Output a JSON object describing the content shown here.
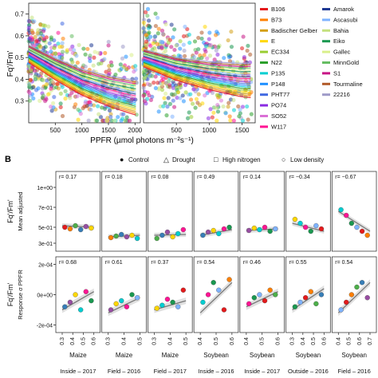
{
  "panel_a": {
    "ylabel": "Fq'/Fm'",
    "xlabel": "PPFR (µmol photons m⁻²s⁻¹)",
    "ytick_labels": [
      "0.3",
      "0.4",
      "0.5",
      "0.6",
      "0.7"
    ],
    "xtick_labels_left": [
      "500",
      "1000",
      "1500",
      "2000"
    ],
    "xtick_labels_right": [
      "500",
      "1000",
      "1500"
    ]
  },
  "legend_a": {
    "col1": [
      {
        "name": "B106",
        "color": "#e41a1c"
      },
      {
        "name": "B73",
        "color": "#ff7f00"
      },
      {
        "name": "Badischer Gelber",
        "color": "#d4a017"
      },
      {
        "name": "E",
        "color": "#ffd700"
      },
      {
        "name": "EC334",
        "color": "#9acd32"
      },
      {
        "name": "N22",
        "color": "#2ca02c"
      },
      {
        "name": "P135",
        "color": "#00ced1"
      },
      {
        "name": "P148",
        "color": "#1e90ff"
      },
      {
        "name": "PHT77",
        "color": "#4169e1"
      },
      {
        "name": "PO74",
        "color": "#8a2be2"
      },
      {
        "name": "SO52",
        "color": "#da70d6"
      },
      {
        "name": "W117",
        "color": "#ff1493"
      }
    ],
    "col2": [
      {
        "name": "Amarok",
        "color": "#1f3a93"
      },
      {
        "name": "Ascasubi",
        "color": "#7fb3ff"
      },
      {
        "name": "Bahia",
        "color": "#c4e17f"
      },
      {
        "name": "Eiko",
        "color": "#1a9850"
      },
      {
        "name": "Gallec",
        "color": "#d9ef8b"
      },
      {
        "name": "MinnGold",
        "color": "#66bd63"
      },
      {
        "name": "S1",
        "color": "#c71585"
      },
      {
        "name": "Tourmaline",
        "color": "#b15928"
      },
      {
        "name": "22216",
        "color": "#9e9ac8"
      }
    ]
  },
  "panel_b": {
    "label": "B",
    "legend": [
      {
        "symbol": "●",
        "label": "Control"
      },
      {
        "symbol": "△",
        "label": "Drought"
      },
      {
        "symbol": "□",
        "label": "High nitrogen"
      },
      {
        "symbol": "○",
        "label": "Low density"
      }
    ],
    "top_ylabel_main": "Fq'/Fm'",
    "top_ylabel_sub": "Mean adjusted",
    "top_yticks": [
      "1e+00",
      "7e-01",
      "5e-01",
      "3e-01"
    ],
    "bottom_ylabel_main": "Fq'/Fm'",
    "bottom_ylabel_sub": "Response σ PPFR",
    "bottom_yticks": [
      "2e-04",
      "0e+00",
      "-2e-04"
    ]
  },
  "chart_data": [
    {
      "type": "scatter",
      "panel": "A",
      "xlabel": "PPFR (µmol photons m⁻²s⁻¹)",
      "ylabel": "Fq'/Fm'",
      "subpanels": [
        {
          "xlim": [
            0,
            2100
          ],
          "ylim": [
            0.2,
            0.75
          ],
          "trend_x": [
            0,
            500,
            1000,
            1500,
            2000
          ],
          "trend_y": [
            0.52,
            0.45,
            0.39,
            0.35,
            0.32
          ]
        },
        {
          "xlim": [
            0,
            1700
          ],
          "ylim": [
            0.2,
            0.75
          ],
          "trend_x": [
            0,
            500,
            1000,
            1500
          ],
          "trend_y": [
            0.5,
            0.45,
            0.42,
            0.4
          ]
        }
      ]
    },
    {
      "type": "scatter",
      "panel": "B",
      "facets": [
        {
          "crop": "Maize",
          "env": "Inside – 2017",
          "r_top": "r= 0.17",
          "r_bottom": "r= 0.68",
          "x_ticks": [
            "0.3",
            "0.4",
            "0.5",
            "0.6"
          ],
          "top_trend": [
            0.52,
            0.5
          ],
          "bottom_trend": [
            -0.1,
            0.02
          ],
          "top_points": [
            0.5,
            0.48,
            0.52,
            0.47,
            0.51,
            0.49
          ],
          "bottom_points": [
            -0.08,
            -0.05,
            0.0,
            -0.1,
            0.02,
            -0.04
          ]
        },
        {
          "crop": "Maize",
          "env": "Field – 2016",
          "r_top": "r= 0.18",
          "r_bottom": "r= 0.61",
          "x_ticks": [
            "0.3",
            "0.4",
            "0.5"
          ],
          "top_trend": [
            0.38,
            0.4
          ],
          "bottom_trend": [
            -0.12,
            -0.02
          ],
          "top_points": [
            0.37,
            0.39,
            0.41,
            0.38,
            0.4,
            0.36
          ],
          "bottom_points": [
            -0.1,
            -0.06,
            -0.04,
            -0.08,
            0.0,
            -0.02
          ]
        },
        {
          "crop": "Maize",
          "env": "Field – 2017",
          "r_top": "r= 0.08",
          "r_bottom": "r= 0.37",
          "x_ticks": [
            "0.3",
            "0.4",
            "0.5"
          ],
          "top_trend": [
            0.4,
            0.41
          ],
          "bottom_trend": [
            -0.1,
            -0.04
          ],
          "top_points": [
            0.36,
            0.4,
            0.44,
            0.38,
            0.42,
            0.47
          ],
          "bottom_points": [
            -0.09,
            -0.07,
            -0.03,
            -0.05,
            -0.08,
            0.03
          ]
        },
        {
          "crop": "Soybean",
          "env": "Inside – 2016",
          "r_top": "r= 0.49",
          "r_bottom": "r= 0.54",
          "x_ticks": [
            "0.4",
            "0.5",
            "0.6"
          ],
          "top_trend": [
            0.4,
            0.47
          ],
          "bottom_trend": [
            -0.12,
            0.08
          ],
          "top_points": [
            0.4,
            0.44,
            0.46,
            0.42,
            0.48,
            0.5
          ],
          "bottom_points": [
            -0.05,
            0.0,
            0.08,
            0.03,
            -0.1,
            0.1
          ]
        },
        {
          "crop": "Soybean",
          "env": "Inside – 2017",
          "r_top": "r= 0.14",
          "r_bottom": "r= 0.46",
          "x_ticks": [
            "0.4",
            "0.5",
            "0.6"
          ],
          "top_trend": [
            0.46,
            0.48
          ],
          "bottom_trend": [
            -0.08,
            0.02
          ],
          "top_points": [
            0.46,
            0.49,
            0.47,
            0.5,
            0.45,
            0.48
          ],
          "bottom_points": [
            -0.06,
            -0.02,
            0.0,
            -0.04,
            0.03,
            0.0
          ]
        },
        {
          "crop": "Soybean",
          "env": "Outside – 2016",
          "r_top": "r= −0.34",
          "r_bottom": "r= 0.55",
          "x_ticks": [
            "0.3",
            "0.4",
            "0.5",
            "0.6"
          ],
          "top_trend": [
            0.55,
            0.45
          ],
          "bottom_trend": [
            -0.1,
            0.04
          ],
          "top_points": [
            0.6,
            0.55,
            0.5,
            0.45,
            0.52,
            0.48
          ],
          "bottom_points": [
            -0.08,
            -0.05,
            -0.02,
            0.02,
            -0.06,
            0.0
          ]
        },
        {
          "crop": "Soybean",
          "env": "Field – 2016",
          "r_top": "r= −0.67",
          "r_bottom": "r= 0.54",
          "x_ticks": [
            "0.4",
            "0.5",
            "0.6",
            "0.7"
          ],
          "top_trend": [
            0.7,
            0.45
          ],
          "bottom_trend": [
            -0.12,
            0.08
          ],
          "top_points": [
            0.72,
            0.65,
            0.55,
            0.5,
            0.45,
            0.4
          ],
          "bottom_points": [
            -0.1,
            -0.05,
            0.0,
            0.05,
            0.08,
            -0.02
          ]
        }
      ]
    }
  ]
}
